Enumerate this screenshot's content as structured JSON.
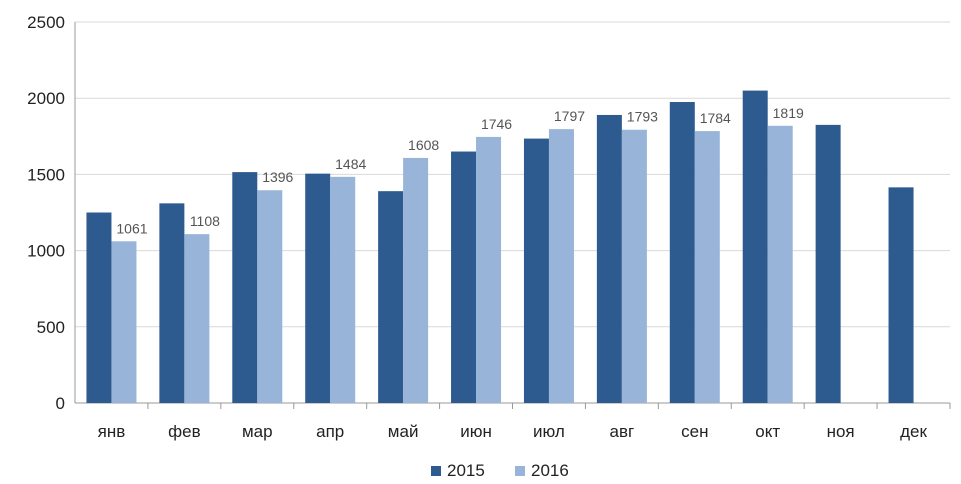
{
  "chart_data": {
    "type": "bar",
    "categories": [
      "янв",
      "фев",
      "мар",
      "апр",
      "май",
      "июн",
      "июл",
      "авг",
      "сен",
      "окт",
      "ноя",
      "дек"
    ],
    "series": [
      {
        "name": "2015",
        "color": "#2e5b8f",
        "values": [
          1250,
          1310,
          1515,
          1505,
          1390,
          1650,
          1735,
          1890,
          1975,
          2050,
          1825,
          1415
        ]
      },
      {
        "name": "2016",
        "color": "#98b4d8",
        "values": [
          1061,
          1108,
          1396,
          1484,
          1608,
          1746,
          1797,
          1793,
          1784,
          1819,
          null,
          null
        ]
      }
    ],
    "data_labels": [
      {
        "series": "2016",
        "values": [
          "1061",
          "1108",
          "1396",
          "1484",
          "1608",
          "1746",
          "1797",
          "1793",
          "1784",
          "1819",
          null,
          null
        ]
      }
    ],
    "y_ticks": [
      "0",
      "500",
      "1000",
      "1500",
      "2000",
      "2500"
    ],
    "ylim": [
      0,
      2500
    ],
    "grid": true,
    "legend_position": "bottom"
  }
}
